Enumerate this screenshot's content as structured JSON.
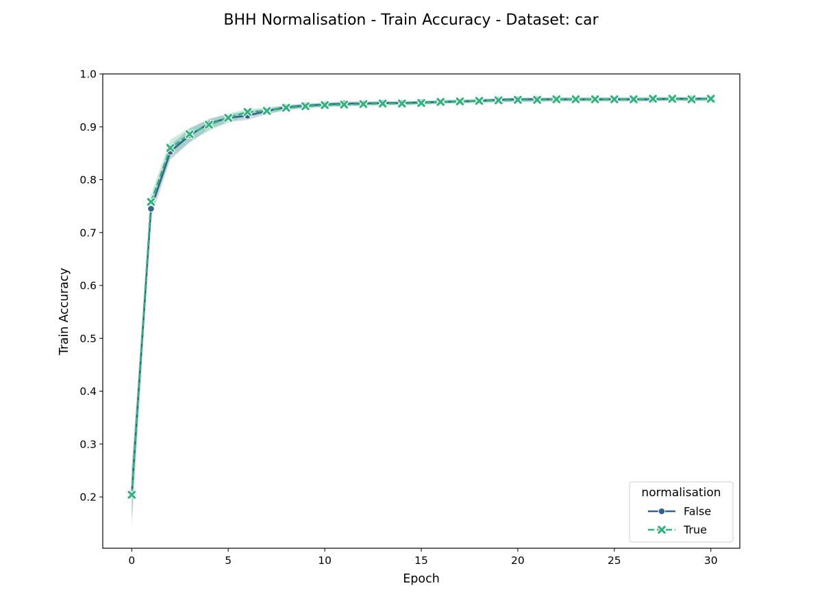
{
  "chart_data": {
    "type": "line",
    "title": "BHH Normalisation - Train Accuracy - Dataset: car",
    "xlabel": "Epoch",
    "ylabel": "Train Accuracy",
    "xlim": [
      -1.5,
      31.5
    ],
    "ylim": [
      0.103,
      1.0
    ],
    "xticks": [
      "0",
      "5",
      "10",
      "15",
      "20",
      "25",
      "30"
    ],
    "yticks": [
      "0.2",
      "0.3",
      "0.4",
      "0.5",
      "0.6",
      "0.7",
      "0.8",
      "0.9",
      "1.0"
    ],
    "grid": false,
    "legend": {
      "title": "normalisation",
      "position": "bottom-right"
    },
    "x": [
      0,
      1,
      2,
      3,
      4,
      5,
      6,
      7,
      8,
      9,
      10,
      11,
      12,
      13,
      14,
      15,
      16,
      17,
      18,
      19,
      20,
      21,
      22,
      23,
      24,
      25,
      26,
      27,
      28,
      29,
      30
    ],
    "series": [
      {
        "name": "False",
        "color": "#33638d",
        "linestyle": "solid",
        "marker": "circle",
        "values": [
          0.205,
          0.745,
          0.853,
          0.884,
          0.906,
          0.917,
          0.921,
          0.93,
          0.937,
          0.94,
          0.942,
          0.944,
          0.944,
          0.945,
          0.945,
          0.946,
          0.947,
          0.948,
          0.949,
          0.951,
          0.952,
          0.952,
          0.952,
          0.952,
          0.952,
          0.952,
          0.952,
          0.952,
          0.953,
          0.953,
          0.953
        ],
        "band_lower": [
          0.145,
          0.728,
          0.838,
          0.87,
          0.896,
          0.909,
          0.913,
          0.924,
          0.932,
          0.936,
          0.938,
          0.94,
          0.941,
          0.942,
          0.942,
          0.943,
          0.944,
          0.945,
          0.946,
          0.947,
          0.948,
          0.948,
          0.948,
          0.948,
          0.948,
          0.948,
          0.948,
          0.948,
          0.949,
          0.949,
          0.949
        ],
        "band_upper": [
          0.255,
          0.76,
          0.866,
          0.896,
          0.915,
          0.924,
          0.929,
          0.935,
          0.941,
          0.944,
          0.946,
          0.948,
          0.948,
          0.948,
          0.948,
          0.949,
          0.95,
          0.951,
          0.952,
          0.954,
          0.955,
          0.955,
          0.955,
          0.955,
          0.955,
          0.955,
          0.955,
          0.955,
          0.956,
          0.956,
          0.956
        ]
      },
      {
        "name": "True",
        "color": "#2fb47c",
        "linestyle": "dashed",
        "marker": "x",
        "values": [
          0.204,
          0.758,
          0.86,
          0.886,
          0.904,
          0.917,
          0.928,
          0.93,
          0.936,
          0.939,
          0.941,
          0.942,
          0.943,
          0.944,
          0.944,
          0.945,
          0.947,
          0.948,
          0.949,
          0.95,
          0.951,
          0.951,
          0.952,
          0.952,
          0.952,
          0.952,
          0.952,
          0.953,
          0.953,
          0.952,
          0.953
        ],
        "band_lower": [
          0.16,
          0.742,
          0.842,
          0.872,
          0.892,
          0.908,
          0.92,
          0.924,
          0.931,
          0.935,
          0.937,
          0.938,
          0.939,
          0.94,
          0.94,
          0.941,
          0.943,
          0.944,
          0.945,
          0.946,
          0.947,
          0.947,
          0.948,
          0.948,
          0.948,
          0.948,
          0.948,
          0.949,
          0.949,
          0.948,
          0.949
        ],
        "band_upper": [
          0.25,
          0.772,
          0.876,
          0.898,
          0.914,
          0.925,
          0.934,
          0.936,
          0.941,
          0.943,
          0.945,
          0.946,
          0.947,
          0.948,
          0.948,
          0.949,
          0.951,
          0.952,
          0.953,
          0.954,
          0.955,
          0.955,
          0.956,
          0.956,
          0.956,
          0.956,
          0.956,
          0.957,
          0.957,
          0.956,
          0.957
        ]
      }
    ]
  }
}
